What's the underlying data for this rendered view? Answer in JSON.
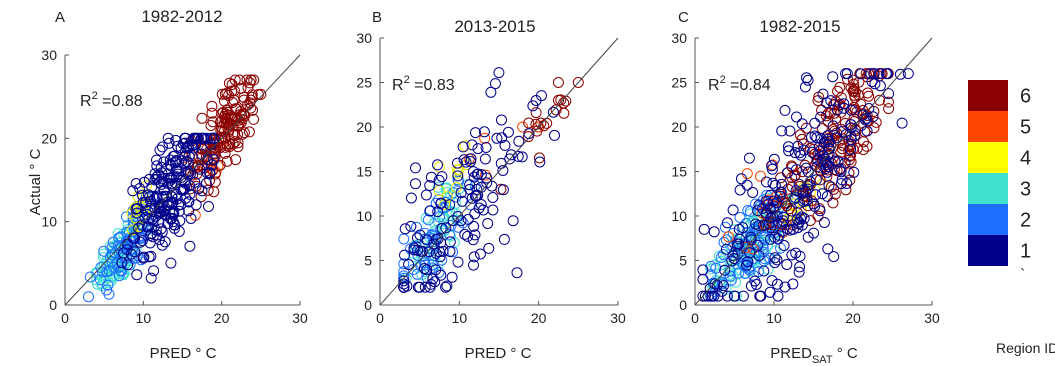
{
  "chart_data": [
    {
      "type": "scatter",
      "panel_letter": "A",
      "title": "1982-2012",
      "xlabel": "PRED ° C",
      "ylabel": "Actual ° C",
      "xlim": [
        0,
        30
      ],
      "ylim": [
        0,
        30
      ],
      "xticks": [
        0,
        10,
        20,
        30
      ],
      "yticks": [
        0,
        10,
        20,
        30
      ],
      "r2_label": "R",
      "r2_sup": "2",
      "r2_value": " =0.88",
      "reference_line": "y = x",
      "series": [
        {
          "region": 1,
          "count": 220,
          "x_range": [
            7,
            19
          ],
          "y_range": [
            3,
            20
          ],
          "center": [
            13.5,
            13.5
          ]
        },
        {
          "region": 2,
          "count": 80,
          "x_range": [
            3,
            13
          ],
          "y_range": [
            1,
            13
          ],
          "center": [
            8,
            7.5
          ]
        },
        {
          "region": 3,
          "count": 90,
          "x_range": [
            4,
            11
          ],
          "y_range": [
            2,
            11
          ],
          "center": [
            7,
            6
          ]
        },
        {
          "region": 4,
          "count": 12,
          "x_range": [
            8,
            12
          ],
          "y_range": [
            9,
            16
          ],
          "center": [
            10,
            12
          ]
        },
        {
          "region": 5,
          "count": 8,
          "x_range": [
            15,
            22
          ],
          "y_range": [
            3,
            22
          ],
          "center": [
            19,
            18
          ]
        },
        {
          "region": 6,
          "count": 150,
          "x_range": [
            16,
            25
          ],
          "y_range": [
            13,
            27
          ],
          "center": [
            20.5,
            21
          ]
        }
      ]
    },
    {
      "type": "scatter",
      "panel_letter": "B",
      "title": "2013-2015",
      "xlabel": "PRED ° C",
      "ylabel": "",
      "xlim": [
        0,
        30
      ],
      "ylim": [
        0,
        30
      ],
      "xticks": [
        0,
        10,
        20,
        30
      ],
      "yticks": [
        0,
        5,
        10,
        15,
        20,
        25,
        30
      ],
      "r2_label": "R",
      "r2_sup": "2",
      "r2_value": " =0.83",
      "reference_line": "y = x",
      "series": [
        {
          "region": 1,
          "count": 140,
          "x_range": [
            3,
            27
          ],
          "y_range": [
            2,
            27
          ],
          "center": [
            10,
            10
          ]
        },
        {
          "region": 2,
          "count": 50,
          "x_range": [
            3,
            12
          ],
          "y_range": [
            3,
            15
          ],
          "center": [
            7,
            8
          ]
        },
        {
          "region": 3,
          "count": 45,
          "x_range": [
            3,
            11
          ],
          "y_range": [
            3,
            15
          ],
          "center": [
            7,
            8.5
          ]
        },
        {
          "region": 4,
          "count": 10,
          "x_range": [
            7,
            13
          ],
          "y_range": [
            9,
            20
          ],
          "center": [
            10,
            15
          ]
        },
        {
          "region": 5,
          "count": 6,
          "x_range": [
            0,
            20
          ],
          "y_range": [
            5,
            20
          ],
          "center": [
            12,
            14
          ]
        },
        {
          "region": 6,
          "count": 18,
          "x_range": [
            15,
            26
          ],
          "y_range": [
            13,
            25
          ],
          "center": [
            20,
            19
          ]
        }
      ]
    },
    {
      "type": "scatter",
      "panel_letter": "C",
      "title": "1982-2015",
      "xlabel": "PRED",
      "xlabel_sub": "SAT",
      "xlabel_unit": " ° C",
      "ylabel": "",
      "xlim": [
        0,
        30
      ],
      "ylim": [
        0,
        30
      ],
      "xticks": [
        0,
        10,
        20,
        30
      ],
      "yticks": [
        0,
        5,
        10,
        15,
        20,
        25,
        30
      ],
      "r2_label": "R",
      "r2_sup": "2",
      "r2_value": " =0.84",
      "reference_line": "y = x",
      "series": [
        {
          "region": 1,
          "count": 240,
          "x_range": [
            1,
            27
          ],
          "y_range": [
            1,
            26
          ],
          "center": [
            13,
            13
          ]
        },
        {
          "region": 2,
          "count": 90,
          "x_range": [
            2,
            14
          ],
          "y_range": [
            1,
            14
          ],
          "center": [
            7,
            7
          ]
        },
        {
          "region": 3,
          "count": 100,
          "x_range": [
            2,
            13
          ],
          "y_range": [
            1,
            12
          ],
          "center": [
            7,
            7
          ]
        },
        {
          "region": 4,
          "count": 12,
          "x_range": [
            8,
            19
          ],
          "y_range": [
            8,
            14
          ],
          "center": [
            13,
            11
          ]
        },
        {
          "region": 5,
          "count": 14,
          "x_range": [
            3,
            16
          ],
          "y_range": [
            0,
            17
          ],
          "center": [
            8,
            10
          ]
        },
        {
          "region": 6,
          "count": 170,
          "x_range": [
            9,
            27
          ],
          "y_range": [
            9,
            26
          ],
          "center": [
            18,
            19
          ]
        }
      ]
    }
  ],
  "colorbar": {
    "title": "Region ID",
    "ticks": [
      "6",
      "5",
      "4",
      "3",
      "2",
      "1"
    ],
    "extra_mark": "`",
    "colors": [
      "#8b0000",
      "#ff4500",
      "#ffff00",
      "#40e0d0",
      "#1e6fff",
      "#00008b"
    ]
  },
  "region_colors": {
    "1": "#00008b",
    "2": "#1e6fff",
    "3": "#40e0d0",
    "4": "#e8e800",
    "5": "#ff4500",
    "6": "#8b0000"
  }
}
